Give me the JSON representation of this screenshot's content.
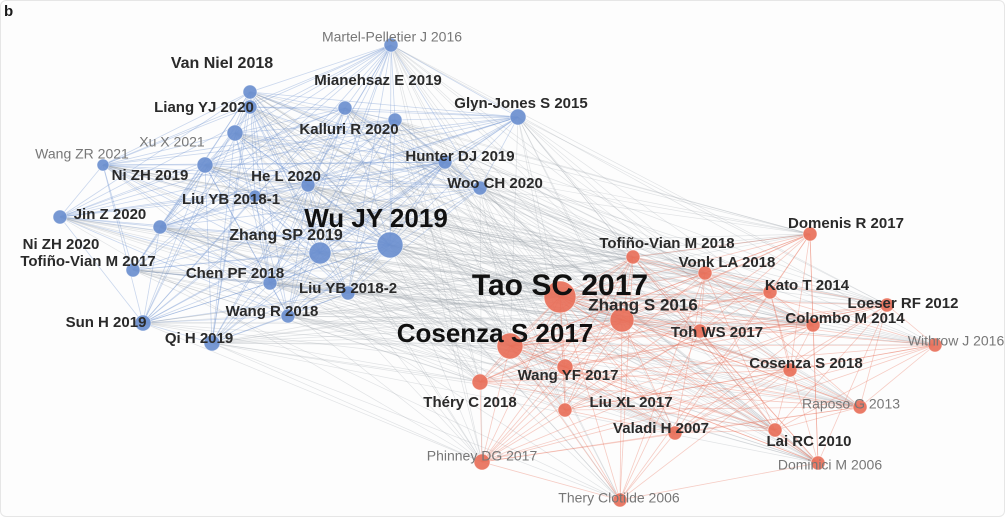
{
  "panel_label": "b",
  "colors": {
    "cluster_blue": "#6b8fcf",
    "cluster_red": "#e8705a",
    "edge_gray": "#9aa0a8",
    "label_dark": "#2a2a2a",
    "label_gray": "#777777"
  },
  "nodes": [
    {
      "id": "martel-pelletier",
      "label": "Martel-Pelletier J 2016",
      "cluster": "blue",
      "size": "s"
    },
    {
      "id": "van-niel",
      "label": "Van Niel 2018",
      "cluster": "blue",
      "size": "m"
    },
    {
      "id": "mianehsaz",
      "label": "Mianehsaz E 2019",
      "cluster": "blue",
      "size": "m"
    },
    {
      "id": "glyn-jones",
      "label": "Glyn-Jones S 2015",
      "cluster": "blue",
      "size": "m"
    },
    {
      "id": "liang",
      "label": "Liang YJ 2020",
      "cluster": "blue",
      "size": "m"
    },
    {
      "id": "kalluri",
      "label": "Kalluri R 2020",
      "cluster": "blue",
      "size": "m"
    },
    {
      "id": "xu-x",
      "label": "Xu X 2021",
      "cluster": "blue",
      "size": "s"
    },
    {
      "id": "wang-zr",
      "label": "Wang ZR 2021",
      "cluster": "blue",
      "size": "s"
    },
    {
      "id": "hunter",
      "label": "Hunter DJ 2019",
      "cluster": "blue",
      "size": "m"
    },
    {
      "id": "ni-zh-2019",
      "label": "Ni ZH 2019",
      "cluster": "blue",
      "size": "m"
    },
    {
      "id": "he-l",
      "label": "He L 2020",
      "cluster": "blue",
      "size": "m"
    },
    {
      "id": "woo",
      "label": "Woo CH 2020",
      "cluster": "blue",
      "size": "m"
    },
    {
      "id": "liu-yb-1",
      "label": "Liu YB 2018-1",
      "cluster": "blue",
      "size": "m"
    },
    {
      "id": "jin-z",
      "label": "Jin Z 2020",
      "cluster": "blue",
      "size": "m"
    },
    {
      "id": "wu-jy",
      "label": "Wu JY 2019",
      "cluster": "blue",
      "size": "xl"
    },
    {
      "id": "zhang-sp",
      "label": "Zhang SP 2019",
      "cluster": "blue",
      "size": "m"
    },
    {
      "id": "ni-zh-2020",
      "label": "Ni ZH 2020",
      "cluster": "blue",
      "size": "m"
    },
    {
      "id": "tofino-2017",
      "label": "Tofiño-Vian M 2017",
      "cluster": "blue",
      "size": "m"
    },
    {
      "id": "chen-pf",
      "label": "Chen PF 2018",
      "cluster": "blue",
      "size": "m"
    },
    {
      "id": "liu-yb-2",
      "label": "Liu YB 2018-2",
      "cluster": "blue",
      "size": "m"
    },
    {
      "id": "sun-h",
      "label": "Sun H 2019",
      "cluster": "blue",
      "size": "m"
    },
    {
      "id": "wang-r",
      "label": "Wang R 2018",
      "cluster": "blue",
      "size": "m"
    },
    {
      "id": "qi-h",
      "label": "Qi H 2019",
      "cluster": "blue",
      "size": "m"
    },
    {
      "id": "domenis",
      "label": "Domenis R 2017",
      "cluster": "red",
      "size": "m"
    },
    {
      "id": "tofino-2018",
      "label": "Tofiño-Vian M 2018",
      "cluster": "red",
      "size": "m"
    },
    {
      "id": "tao",
      "label": "Tao SC 2017",
      "cluster": "red",
      "size": "xl"
    },
    {
      "id": "vonk",
      "label": "Vonk LA 2018",
      "cluster": "red",
      "size": "m"
    },
    {
      "id": "kato",
      "label": "Kato T 2014",
      "cluster": "red",
      "size": "m"
    },
    {
      "id": "zhang-s",
      "label": "Zhang S 2016",
      "cluster": "red",
      "size": "l"
    },
    {
      "id": "loeser",
      "label": "Loeser RF 2012",
      "cluster": "red",
      "size": "m"
    },
    {
      "id": "colombo",
      "label": "Colombo M 2014",
      "cluster": "red",
      "size": "m"
    },
    {
      "id": "cosenza-2017",
      "label": "Cosenza S 2017",
      "cluster": "red",
      "size": "xl"
    },
    {
      "id": "toh",
      "label": "Toh WS 2017",
      "cluster": "red",
      "size": "m"
    },
    {
      "id": "withrow",
      "label": "Withrow J 2016",
      "cluster": "red",
      "size": "s"
    },
    {
      "id": "cosenza-2018",
      "label": "Cosenza S 2018",
      "cluster": "red",
      "size": "m"
    },
    {
      "id": "wang-yf",
      "label": "Wang YF 2017",
      "cluster": "red",
      "size": "m"
    },
    {
      "id": "thery-2018",
      "label": "Théry C 2018",
      "cluster": "red",
      "size": "m"
    },
    {
      "id": "liu-xl",
      "label": "Liu XL 2017",
      "cluster": "red",
      "size": "m"
    },
    {
      "id": "raposo",
      "label": "Raposo G 2013",
      "cluster": "red",
      "size": "s"
    },
    {
      "id": "valadi",
      "label": "Valadi H 2007",
      "cluster": "red",
      "size": "m"
    },
    {
      "id": "lai",
      "label": "Lai RC 2010",
      "cluster": "red",
      "size": "m"
    },
    {
      "id": "phinney",
      "label": "Phinney DG 2017",
      "cluster": "red",
      "size": "s"
    },
    {
      "id": "dominici",
      "label": "Dominici M 2006",
      "cluster": "red",
      "size": "s"
    },
    {
      "id": "thery-clotilde",
      "label": "Thery Clotilde 2006",
      "cluster": "red",
      "size": "s"
    }
  ]
}
